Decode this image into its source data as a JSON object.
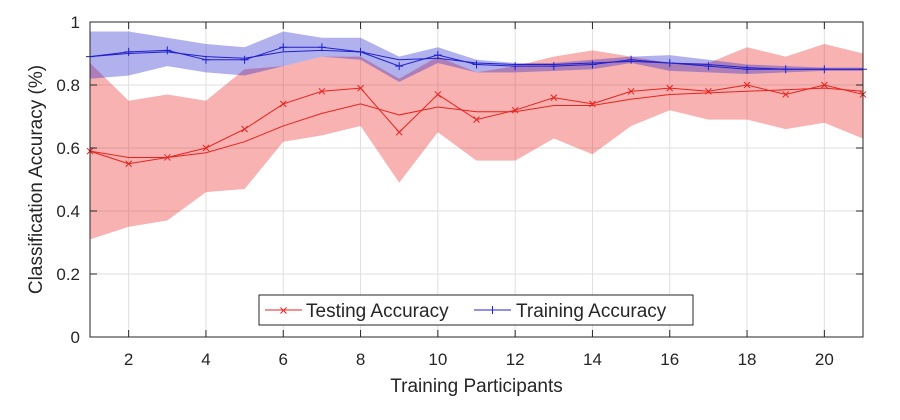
{
  "chart_data": {
    "type": "line",
    "xlabel": "Training Participants",
    "ylabel": "Classification Accuracy (%)",
    "xlim": [
      1,
      21
    ],
    "ylim": [
      0,
      1
    ],
    "xticks": [
      2,
      4,
      6,
      8,
      10,
      12,
      14,
      16,
      18,
      20
    ],
    "yticks": [
      0,
      0.2,
      0.4,
      0.6,
      0.8,
      1
    ],
    "ytick_labels": [
      "0",
      "0.2",
      "0.4",
      "0.6",
      "0.8",
      "1"
    ],
    "grid": true,
    "legend_position": "bottom-center",
    "x": [
      1,
      2,
      3,
      4,
      5,
      6,
      7,
      8,
      9,
      10,
      11,
      12,
      13,
      14,
      15,
      16,
      17,
      18,
      19,
      20,
      21
    ],
    "series": [
      {
        "name": "Testing Accuracy",
        "color": "#e8231f",
        "marker": "x",
        "values": [
          0.59,
          0.55,
          0.57,
          0.6,
          0.66,
          0.74,
          0.78,
          0.79,
          0.65,
          0.77,
          0.69,
          0.72,
          0.76,
          0.74,
          0.78,
          0.79,
          0.78,
          0.8,
          0.77,
          0.8,
          0.77
        ],
        "trend": [
          0.59,
          0.57,
          0.57,
          0.585,
          0.62,
          0.67,
          0.71,
          0.74,
          0.705,
          0.73,
          0.715,
          0.715,
          0.735,
          0.735,
          0.755,
          0.77,
          0.775,
          0.78,
          0.785,
          0.79,
          0.78
        ],
        "band_upper": [
          0.87,
          0.75,
          0.77,
          0.75,
          0.85,
          0.86,
          0.89,
          0.89,
          0.82,
          0.89,
          0.84,
          0.86,
          0.89,
          0.91,
          0.89,
          0.87,
          0.87,
          0.92,
          0.89,
          0.93,
          0.9
        ],
        "band_lower": [
          0.31,
          0.35,
          0.37,
          0.46,
          0.47,
          0.62,
          0.64,
          0.67,
          0.49,
          0.65,
          0.56,
          0.56,
          0.63,
          0.58,
          0.67,
          0.72,
          0.69,
          0.69,
          0.66,
          0.68,
          0.63
        ]
      },
      {
        "name": "Training Accuracy",
        "color": "#2020cc",
        "marker": "+",
        "values": [
          0.89,
          0.905,
          0.91,
          0.88,
          0.88,
          0.92,
          0.92,
          0.905,
          0.86,
          0.895,
          0.865,
          0.86,
          0.86,
          0.865,
          0.88,
          0.87,
          0.86,
          0.85,
          0.85,
          0.85,
          0.85
        ],
        "trend": [
          0.89,
          0.9,
          0.905,
          0.89,
          0.885,
          0.905,
          0.91,
          0.905,
          0.88,
          0.885,
          0.87,
          0.865,
          0.865,
          0.87,
          0.875,
          0.87,
          0.865,
          0.855,
          0.85,
          0.85,
          0.85
        ],
        "band_upper": [
          0.97,
          0.97,
          0.95,
          0.93,
          0.92,
          0.97,
          0.95,
          0.95,
          0.89,
          0.92,
          0.88,
          0.87,
          0.87,
          0.88,
          0.89,
          0.895,
          0.88,
          0.865,
          0.86,
          0.855,
          0.855
        ],
        "band_lower": [
          0.82,
          0.83,
          0.86,
          0.84,
          0.83,
          0.86,
          0.89,
          0.88,
          0.81,
          0.87,
          0.84,
          0.84,
          0.845,
          0.85,
          0.87,
          0.845,
          0.84,
          0.835,
          0.84,
          0.845,
          0.845
        ]
      }
    ]
  }
}
